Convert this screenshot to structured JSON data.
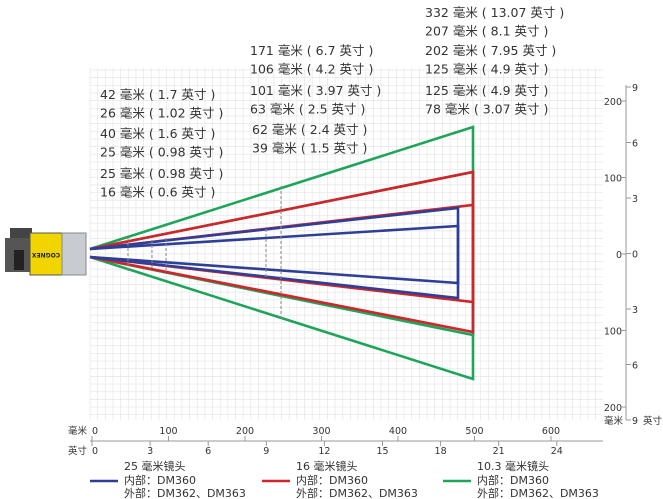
{
  "annotation_groups": [
    {
      "color": "#1ea55a",
      "lines": [
        "332 毫米 ( 13.07 英寸 )",
        "207 毫米 ( 8.1 英寸 )"
      ]
    },
    {
      "color": "#d1242b",
      "lines": [
        "202 毫米 ( 7.95 英寸 )",
        "125 毫米 ( 4.9 英寸 )"
      ]
    },
    {
      "color": "#2f3f98",
      "lines": [
        "125 毫米 ( 4.9 英寸 )",
        "78 毫米 ( 3.07 英寸 )"
      ]
    },
    {
      "color": "#1ea55a",
      "lines": [
        "171 毫米 ( 6.7 英寸 )",
        "106 毫米 ( 4.2 英寸 )"
      ]
    },
    {
      "color": "#d1242b",
      "lines": [
        "101 毫米 ( 3.97 英寸 )",
        "63 毫米 ( 2.5 英寸 )"
      ]
    },
    {
      "color": "#2f3f98",
      "lines": [
        "62 毫米 ( 2.4 英寸 )",
        "39 毫米 ( 1.5 英寸 )"
      ]
    },
    {
      "color": "#1ea55a",
      "lines": [
        "42 毫米 ( 1.7 英寸 )",
        "26 毫米 ( 1.02 英寸 )"
      ]
    },
    {
      "color": "#d1242b",
      "lines": [
        "40 毫米 ( 1.6 英寸 )",
        "25 毫米 ( 0.98 英寸 )"
      ]
    },
    {
      "color": "#2f3f98",
      "lines": [
        "25 毫米 ( 0.98 英寸 )",
        "16 毫米 ( 0.6 英寸 )"
      ]
    }
  ],
  "axis_bottom": {
    "mm_unit": "毫米",
    "inch_unit": "英寸",
    "mm_ticks": [
      "0",
      "100",
      "200",
      "300",
      "400",
      "500",
      "600"
    ],
    "inch_ticks": [
      "0",
      "3",
      "6",
      "9",
      "12",
      "15",
      "18",
      "21",
      "24"
    ]
  },
  "axis_right": {
    "mm_unit": "毫米",
    "inch_unit": "英寸",
    "mm_ticks": [
      "200",
      "100",
      "0",
      "100",
      "200"
    ],
    "inch_ticks": [
      "9",
      "6",
      "3",
      "0",
      "3",
      "6",
      "9"
    ]
  },
  "legend": [
    {
      "color": "#2f3f98",
      "title": "25 毫米镜头",
      "line1": "内部：DM360",
      "line2": "外部：DM362、DM363"
    },
    {
      "color": "#d1242b",
      "title": "16 毫米镜头",
      "line1": "内部：DM360",
      "line2": "外部：DM362、DM363"
    },
    {
      "color": "#1ea55a",
      "title": "10.3 毫米镜头",
      "line1": "内部：DM360",
      "line2": "外部：DM362、DM363"
    }
  ],
  "logo": "COGNEX"
}
